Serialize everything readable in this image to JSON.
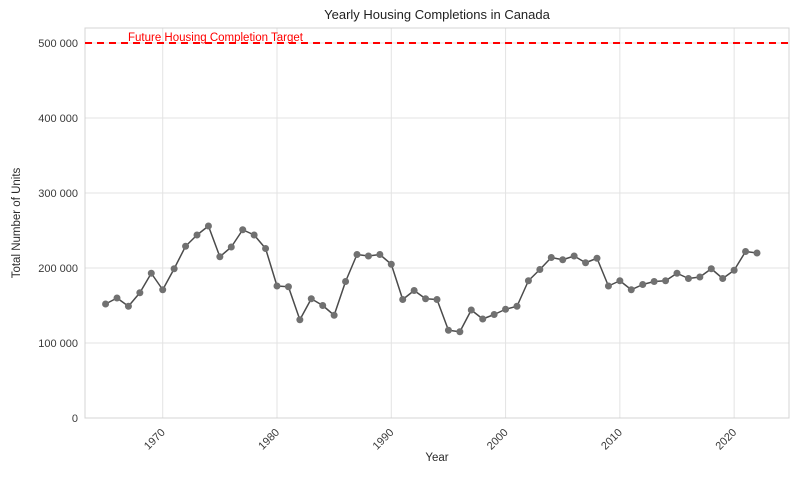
{
  "chart_data": {
    "type": "line",
    "title": "Yearly Housing Completions in Canada",
    "xlabel": "Year",
    "ylabel": "Total Number of Units",
    "x": [
      1965,
      1966,
      1967,
      1968,
      1969,
      1970,
      1971,
      1972,
      1973,
      1974,
      1975,
      1976,
      1977,
      1978,
      1979,
      1980,
      1981,
      1982,
      1983,
      1984,
      1985,
      1986,
      1987,
      1988,
      1989,
      1990,
      1991,
      1992,
      1993,
      1994,
      1995,
      1996,
      1997,
      1998,
      1999,
      2000,
      2001,
      2002,
      2003,
      2004,
      2005,
      2006,
      2007,
      2008,
      2009,
      2010,
      2011,
      2012,
      2013,
      2014,
      2015,
      2016,
      2017,
      2018,
      2019,
      2020,
      2021,
      2022
    ],
    "values": [
      152000,
      160000,
      149000,
      167000,
      193000,
      171000,
      199000,
      229000,
      244000,
      256000,
      215000,
      228000,
      251000,
      244000,
      226000,
      176000,
      175000,
      131000,
      159000,
      150000,
      137000,
      182000,
      218000,
      216000,
      218000,
      205000,
      158000,
      170000,
      159000,
      158000,
      117000,
      115000,
      144000,
      132000,
      138000,
      145000,
      149000,
      183000,
      198000,
      214000,
      211000,
      216000,
      207000,
      213000,
      176000,
      183000,
      171000,
      178000,
      182000,
      183000,
      193000,
      186000,
      188000,
      199000,
      186000,
      197000,
      222000,
      220000
    ],
    "xlim": [
      1963.2,
      2024.8
    ],
    "ylim": [
      0,
      520000
    ],
    "xticks": {
      "values": [
        1970,
        1980,
        1990,
        2000,
        2010,
        2020
      ],
      "labels": [
        "1970",
        "1980",
        "1990",
        "2000",
        "2010",
        "2020"
      ]
    },
    "yticks": {
      "values": [
        0,
        100000,
        200000,
        300000,
        400000,
        500000
      ],
      "labels": [
        "0",
        "100 000",
        "200 000",
        "300 000",
        "400 000",
        "500 000"
      ]
    },
    "grid": true,
    "legend": false,
    "target_line": {
      "value": 500000,
      "label": "Future Housing Completion Target",
      "color": "#ff0000",
      "style": "dashed"
    },
    "colors": {
      "line": "#4b4b4b",
      "marker": "#717171",
      "grid": "#e3e3e3",
      "box_border": "#d4d4d4",
      "tick_text": "#3a3a3a",
      "background": "#ffffff"
    }
  }
}
